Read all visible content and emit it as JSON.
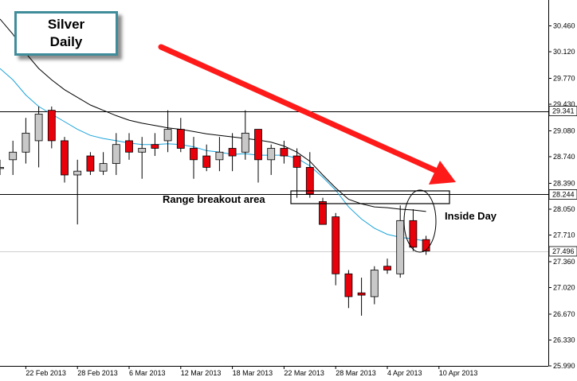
{
  "chart_data": {
    "type": "candlestick",
    "title_lines": [
      "Silver",
      "Daily"
    ],
    "y_ticks": [
      "30.460",
      "30.120",
      "29.770",
      "29.430",
      "29.080",
      "28.740",
      "28.390",
      "28.050",
      "27.710",
      "27.360",
      "27.020",
      "26.670",
      "26.330",
      "25.990"
    ],
    "y_tick_values": [
      30.46,
      30.12,
      29.77,
      29.43,
      29.08,
      28.74,
      28.39,
      28.05,
      27.71,
      27.36,
      27.02,
      26.67,
      26.33,
      25.99
    ],
    "ylim": [
      25.99,
      30.8
    ],
    "x_ticks": [
      "22 Feb 2013",
      "28 Feb 2013",
      "6 Mar 2013",
      "12 Mar 2013",
      "18 Mar 2013",
      "22 Mar 2013",
      "28 Mar 2013",
      "4 Apr 2013",
      "10 Apr 2013"
    ],
    "x_tick_index": [
      2,
      6,
      10,
      14,
      18,
      22,
      26,
      30,
      34
    ],
    "candles": [
      {
        "o": 28.6,
        "h": 28.7,
        "l": 28.5,
        "c": 28.6
      },
      {
        "o": 28.7,
        "h": 28.95,
        "l": 28.5,
        "c": 28.8
      },
      {
        "o": 28.8,
        "h": 29.25,
        "l": 28.65,
        "c": 29.05
      },
      {
        "o": 28.95,
        "h": 29.4,
        "l": 28.6,
        "c": 29.3
      },
      {
        "o": 29.35,
        "h": 29.4,
        "l": 28.85,
        "c": 28.95
      },
      {
        "o": 28.95,
        "h": 29.0,
        "l": 28.4,
        "c": 28.5
      },
      {
        "o": 28.5,
        "h": 28.7,
        "l": 27.85,
        "c": 28.55
      },
      {
        "o": 28.75,
        "h": 28.8,
        "l": 28.5,
        "c": 28.55
      },
      {
        "o": 28.55,
        "h": 28.8,
        "l": 28.5,
        "c": 28.65
      },
      {
        "o": 28.65,
        "h": 29.05,
        "l": 28.5,
        "c": 28.9
      },
      {
        "o": 28.95,
        "h": 29.05,
        "l": 28.7,
        "c": 28.8
      },
      {
        "o": 28.8,
        "h": 29.0,
        "l": 28.45,
        "c": 28.85
      },
      {
        "o": 28.9,
        "h": 29.05,
        "l": 28.75,
        "c": 28.85
      },
      {
        "o": 28.95,
        "h": 29.35,
        "l": 28.8,
        "c": 29.1
      },
      {
        "o": 29.1,
        "h": 29.25,
        "l": 28.8,
        "c": 28.85
      },
      {
        "o": 28.85,
        "h": 29.0,
        "l": 28.45,
        "c": 28.7
      },
      {
        "o": 28.75,
        "h": 28.9,
        "l": 28.55,
        "c": 28.6
      },
      {
        "o": 28.7,
        "h": 29.0,
        "l": 28.55,
        "c": 28.8
      },
      {
        "o": 28.85,
        "h": 29.05,
        "l": 28.55,
        "c": 28.75
      },
      {
        "o": 28.8,
        "h": 29.35,
        "l": 28.7,
        "c": 29.05
      },
      {
        "o": 29.1,
        "h": 29.1,
        "l": 28.4,
        "c": 28.7
      },
      {
        "o": 28.7,
        "h": 28.9,
        "l": 28.5,
        "c": 28.85
      },
      {
        "o": 28.85,
        "h": 28.95,
        "l": 28.65,
        "c": 28.75
      },
      {
        "o": 28.75,
        "h": 28.85,
        "l": 28.2,
        "c": 28.6
      },
      {
        "o": 28.6,
        "h": 28.8,
        "l": 28.2,
        "c": 28.25
      },
      {
        "o": 28.15,
        "h": 28.2,
        "l": 27.85,
        "c": 27.85
      },
      {
        "o": 27.95,
        "h": 28.0,
        "l": 27.05,
        "c": 27.2
      },
      {
        "o": 27.2,
        "h": 27.25,
        "l": 26.75,
        "c": 26.9
      },
      {
        "o": 26.95,
        "h": 27.15,
        "l": 26.65,
        "c": 26.92
      },
      {
        "o": 26.9,
        "h": 27.3,
        "l": 26.8,
        "c": 27.25
      },
      {
        "o": 27.3,
        "h": 27.4,
        "l": 27.2,
        "c": 27.25
      },
      {
        "o": 27.2,
        "h": 28.1,
        "l": 27.15,
        "c": 27.9
      },
      {
        "o": 27.9,
        "h": 28.05,
        "l": 27.5,
        "c": 27.55
      },
      {
        "o": 27.65,
        "h": 27.7,
        "l": 27.45,
        "c": 27.5
      }
    ],
    "fast_ma": [
      29.9,
      29.75,
      29.55,
      29.4,
      29.3,
      29.2,
      29.1,
      29.02,
      28.98,
      28.95,
      28.92,
      28.9,
      28.9,
      28.91,
      28.9,
      28.87,
      28.82,
      28.8,
      28.77,
      28.78,
      28.76,
      28.76,
      28.76,
      28.72,
      28.62,
      28.47,
      28.3,
      28.08,
      27.92,
      27.8,
      27.72,
      27.68,
      27.66,
      27.63
    ],
    "slow_ma": [
      30.55,
      30.35,
      30.1,
      29.9,
      29.75,
      29.62,
      29.52,
      29.42,
      29.35,
      29.28,
      29.22,
      29.18,
      29.15,
      29.12,
      29.1,
      29.07,
      29.04,
      29.02,
      29.0,
      28.98,
      28.96,
      28.93,
      28.88,
      28.8,
      28.68,
      28.5,
      28.33,
      28.18,
      28.12,
      28.08,
      28.07,
      28.05,
      28.04,
      28.02
    ],
    "current_price": "27.496",
    "current_price_value": 27.496,
    "level_labels": [
      "29.341",
      "28.244"
    ],
    "levels": [
      29.341,
      28.244
    ],
    "annotations": {
      "range_breakout": "Range breakout area",
      "inside_day": "Inside Day"
    },
    "colors": {
      "bear": "#e8000b",
      "bull": "#c8c8c8",
      "doji": "#f2c200",
      "fast_ma": "#1aa3d9",
      "slow_ma": "#000000",
      "arrow": "#ff1a1a",
      "title_border": "#3f8c9a"
    }
  }
}
